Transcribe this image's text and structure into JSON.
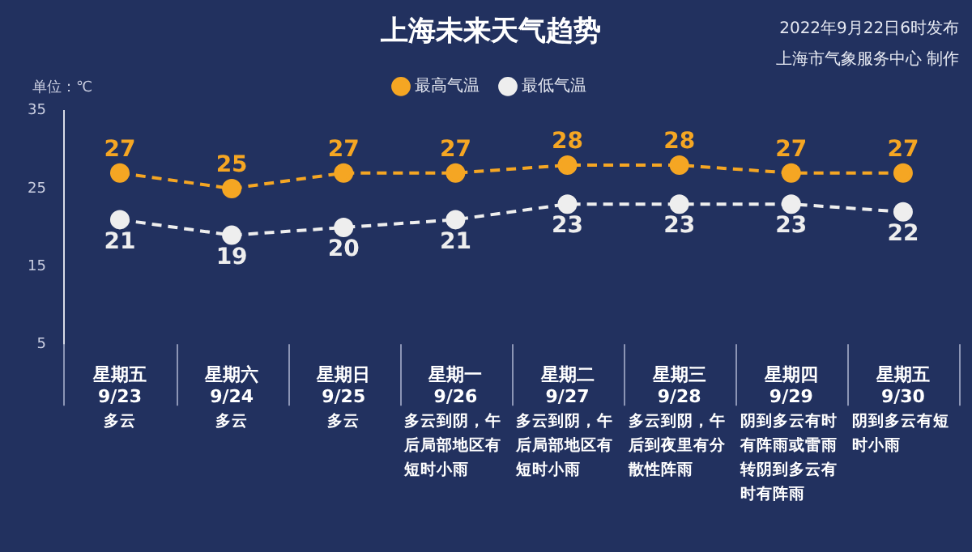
{
  "chart_data": {
    "type": "line",
    "title": "上海未来天气趋势",
    "ylabel": "单位：℃",
    "categories": [
      "星期五 9/23",
      "星期六 9/24",
      "星期日 9/25",
      "星期一 9/26",
      "星期二 9/27",
      "星期三 9/28",
      "星期四 9/29",
      "星期五 9/30"
    ],
    "series": [
      {
        "name": "最高气温",
        "color": "#f5a623",
        "values": [
          27,
          25,
          27,
          27,
          28,
          28,
          27,
          27
        ]
      },
      {
        "name": "最低气温",
        "color": "#eeeeee",
        "values": [
          21,
          19,
          20,
          21,
          23,
          23,
          23,
          22
        ]
      }
    ],
    "ylim": [
      5,
      35
    ],
    "yticks": [
      5,
      15,
      25,
      35
    ],
    "data_labels": true,
    "legend": "top",
    "marker": "circle",
    "line_style": "dashed",
    "annotations": [
      "2022年9月22日6时发布",
      "上海市气象服务中心 制作",
      "多云",
      "多云",
      "多云",
      "多云到阴，午后局部地区有短时小雨",
      "多云到阴，午后局部地区有短时小雨",
      "多云到阴，午后到夜里有分散性阵雨",
      "阴到多云有时有阵雨或雷雨转阴到多云有时有阵雨",
      "阴到多云有短时小雨"
    ]
  }
}
